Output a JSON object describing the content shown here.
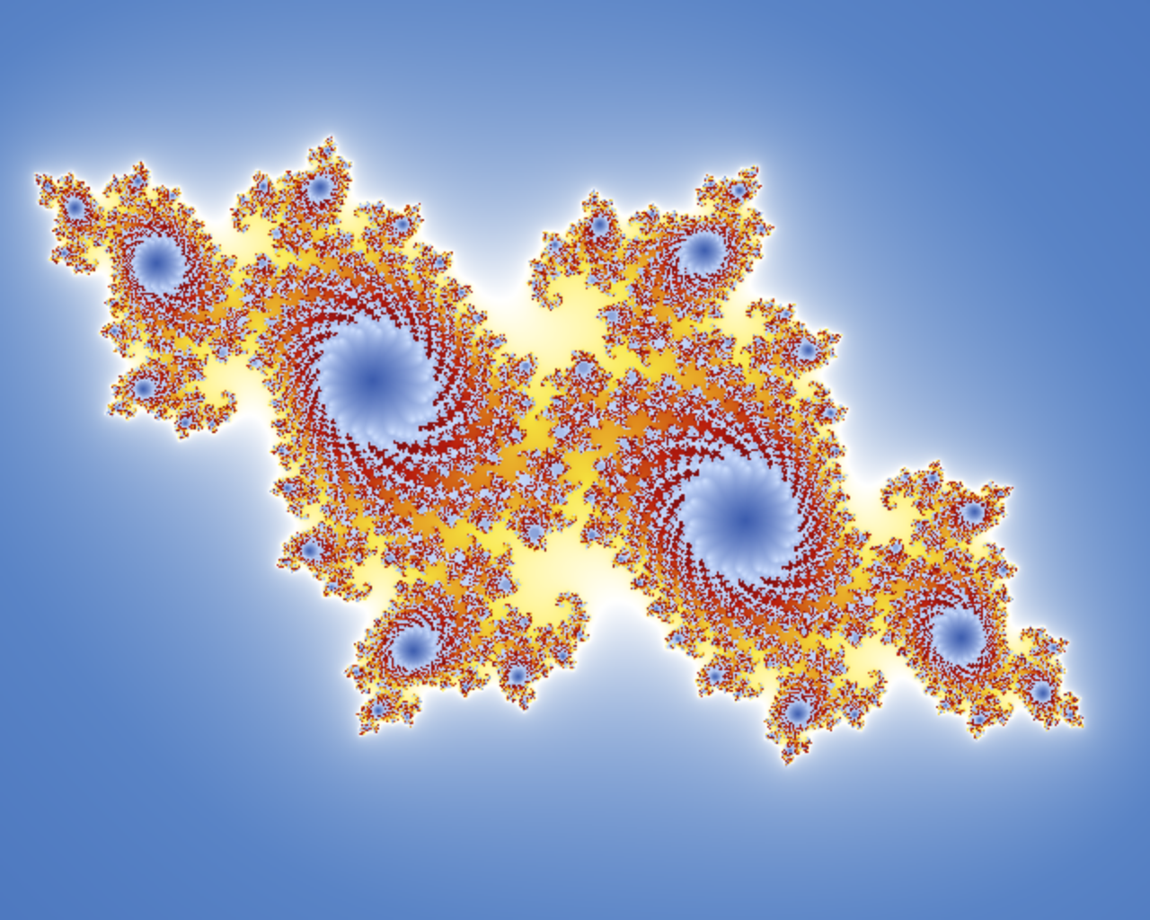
{
  "image": {
    "subject": "julia-set-fractal",
    "palette": {
      "exterior_far": "#0a3a9c",
      "exterior_mid": "#5a84c6",
      "halo": "#ffffff",
      "glow": "#fff59a",
      "yellow": "#f7e640",
      "orange": "#e08a1c",
      "red": "#b81c0c",
      "deep_red": "#7a0c10",
      "interior_blue": "#173b9a",
      "interior_light": "#cfe0ff"
    }
  }
}
